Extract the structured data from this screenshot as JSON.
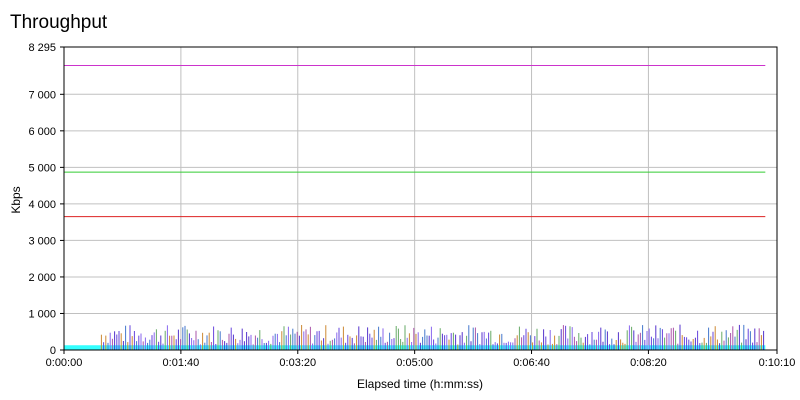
{
  "chart_data": {
    "type": "line",
    "title": "Throughput",
    "xlabel": "Elapsed time (h:mm:ss)",
    "ylabel": "Kbps",
    "xlim": [
      "0:00:00",
      "0:10:10"
    ],
    "ylim": [
      0,
      8295
    ],
    "x_ticks": [
      "0:00:00",
      "0:01:40",
      "0:03:20",
      "0:05:00",
      "0:06:40",
      "0:08:20",
      "0:10:10"
    ],
    "y_ticks": [
      "0",
      "1 000",
      "2 000",
      "3 000",
      "4 000",
      "5 000",
      "6 000",
      "7 000",
      "8 295"
    ],
    "grid": true,
    "series": [
      {
        "color": "#cc33cc",
        "x": [
          "0:00:00",
          "0:10:00"
        ],
        "values": [
          7790,
          7790
        ]
      },
      {
        "color": "#33cc33",
        "x": [
          "0:00:00",
          "0:10:00"
        ],
        "values": [
          4870,
          4870
        ]
      },
      {
        "color": "#dd2222",
        "x": [
          "0:00:00",
          "0:10:00"
        ],
        "values": [
          3650,
          3650
        ]
      },
      {
        "color": "#33ffff",
        "x": [
          "0:00:00",
          "0:10:00"
        ],
        "values": [
          130,
          130
        ]
      },
      {
        "color": "#5533cc",
        "x": [
          "0:00:32",
          "0:10:00"
        ],
        "values": [
          500,
          500
        ],
        "note_range": [
          150,
          700
        ]
      }
    ]
  }
}
